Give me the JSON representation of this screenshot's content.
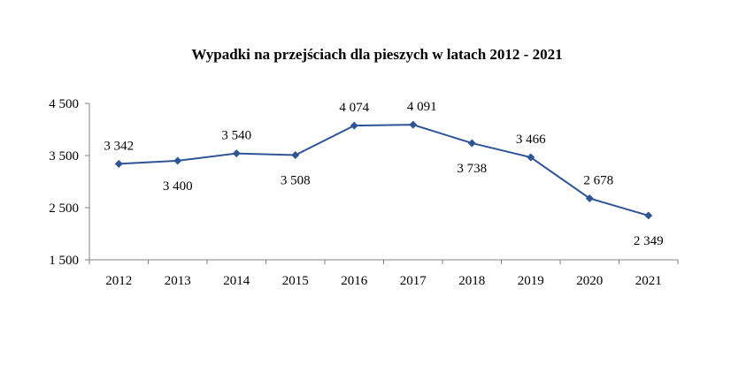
{
  "chart_data": {
    "type": "line",
    "title": "Wypadki na przejściach dla pieszych w latach 2012 - 2021",
    "categories": [
      "2012",
      "2013",
      "2014",
      "2015",
      "2016",
      "2017",
      "2018",
      "2019",
      "2020",
      "2021"
    ],
    "series": [
      {
        "values": [
          3342,
          3400,
          3540,
          3508,
          4074,
          4091,
          3738,
          3466,
          2678,
          2349
        ],
        "labels": [
          "3 342",
          "3 400",
          "3 540",
          "3 508",
          "4 074",
          "4 091",
          "3 738",
          "3 466",
          "2 678",
          "2 349"
        ]
      }
    ],
    "ylim": [
      1500,
      4500
    ],
    "yticks": [
      1500,
      2500,
      3500,
      4500
    ],
    "ytick_labels": [
      "1 500",
      "2 500",
      "3 500",
      "4 500"
    ],
    "xlabel": "",
    "ylabel": "",
    "grid": false,
    "legend": "none",
    "line_color": "#2F5597",
    "marker": "diamond"
  }
}
